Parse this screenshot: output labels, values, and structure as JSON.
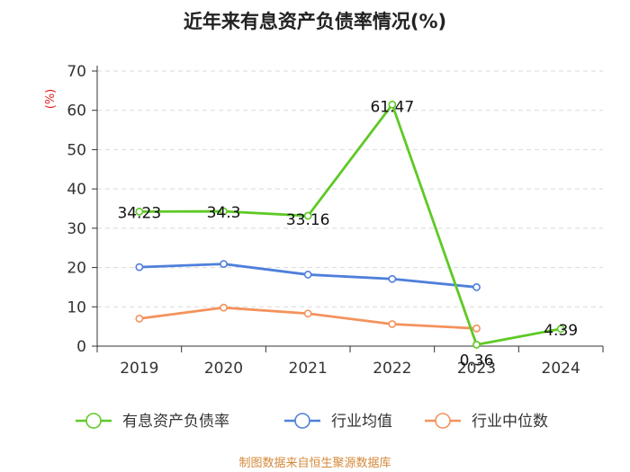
{
  "chart_data": {
    "type": "line",
    "title": "近年来有息资产负债率情况(%)",
    "ylabel": "(%)",
    "xlabel": "",
    "categories": [
      "2019",
      "2020",
      "2021",
      "2022",
      "2023",
      "2024"
    ],
    "ylim": [
      0,
      70
    ],
    "yticks": [
      0,
      10,
      20,
      30,
      40,
      50,
      60,
      70
    ],
    "grid": true,
    "legend_position": "bottom",
    "series": [
      {
        "name": "有息资产负债率",
        "color": "#5ec925",
        "values": [
          34.23,
          34.3,
          33.16,
          61.47,
          0.36,
          4.39
        ],
        "labels": [
          "34.23",
          "34.3",
          "33.16",
          "61.47",
          "0.36",
          "4.39"
        ]
      },
      {
        "name": "行业均值",
        "color": "#4e7fdb",
        "values": [
          20.1,
          20.9,
          18.2,
          17.1,
          15.0,
          null
        ]
      },
      {
        "name": "行业中位数",
        "color": "#f4925c",
        "values": [
          7.0,
          9.8,
          8.3,
          5.6,
          4.5,
          null
        ]
      }
    ]
  },
  "footer": "制图数据来自恒生聚源数据库"
}
